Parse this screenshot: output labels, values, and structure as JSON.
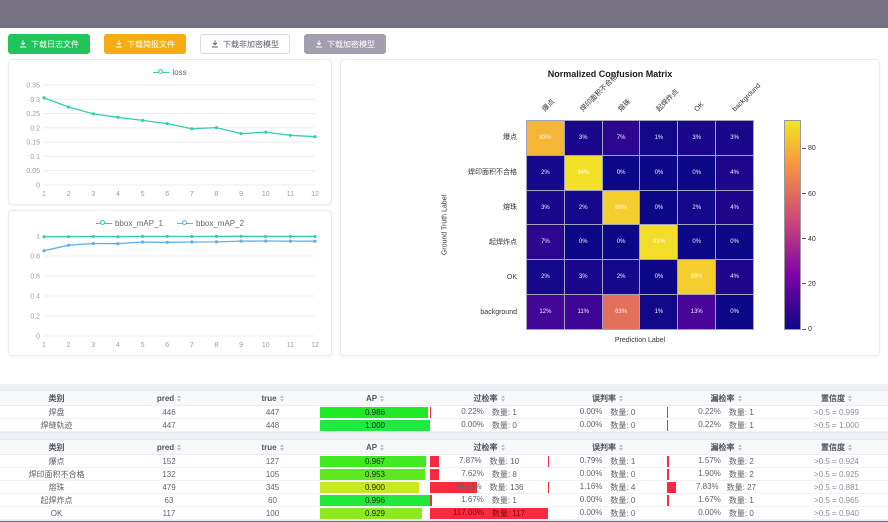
{
  "frame": {
    "bar_color": "#767180"
  },
  "toolbar": {
    "buttons": [
      {
        "label": "下载日志文件",
        "icon": "download-icon",
        "bg": "#21c45a",
        "fg": "#ffffff",
        "border": "#21c45a"
      },
      {
        "label": "下载简报文件",
        "icon": "download-icon",
        "bg": "#f8ac14",
        "fg": "#ffffff",
        "border": "#f8ac14"
      },
      {
        "label": "下载非加密模型",
        "icon": "download-icon",
        "bg": "#ffffff",
        "fg": "#5a5e66",
        "border": "#d9dce3"
      },
      {
        "label": "下载加密模型",
        "icon": "download-icon",
        "bg": "#a39fae",
        "fg": "#ffffff",
        "border": "#a39fae"
      }
    ]
  },
  "chart_data": [
    {
      "type": "line",
      "title": "",
      "x": [
        1,
        2,
        3,
        4,
        5,
        6,
        7,
        8,
        9,
        10,
        11,
        12
      ],
      "series": [
        {
          "name": "loss",
          "color": "#35cdb4",
          "values": [
            0.305,
            0.273,
            0.249,
            0.237,
            0.226,
            0.215,
            0.197,
            0.201,
            0.18,
            0.185,
            0.174,
            0.169
          ]
        }
      ],
      "ylim": [
        0,
        0.35
      ],
      "yticks": [
        0,
        0.05,
        0.1,
        0.15,
        0.2,
        0.25,
        0.3,
        0.35
      ],
      "grid": true,
      "legend_position": "top"
    },
    {
      "type": "line",
      "title": "",
      "x": [
        1,
        2,
        3,
        4,
        5,
        6,
        7,
        8,
        9,
        10,
        11,
        12
      ],
      "series": [
        {
          "name": "bbox_mAP_1",
          "color": "#35cdb4",
          "values": [
            0.993,
            0.993,
            0.995,
            0.993,
            0.996,
            0.996,
            0.995,
            0.996,
            0.997,
            0.996,
            0.996,
            0.996
          ]
        },
        {
          "name": "bbox_mAP_2",
          "color": "#5ab1ef",
          "values": [
            0.852,
            0.908,
            0.925,
            0.923,
            0.94,
            0.937,
            0.94,
            0.941,
            0.949,
            0.95,
            0.949,
            0.948
          ]
        }
      ],
      "ylim": [
        0,
        1
      ],
      "yticks": [
        0,
        0.2,
        0.4,
        0.6,
        0.8,
        1
      ],
      "grid": true,
      "legend_position": "top"
    },
    {
      "type": "heatmap",
      "title": "Normalized Confusion Matrix",
      "xlabel": "Prediction Label",
      "ylabel": "Ground Truth Label",
      "categories": [
        "爆点",
        "焊印面积不合格",
        "熔珠",
        "起焊炸点",
        "OK",
        "background"
      ],
      "values_pct": [
        [
          83,
          3,
          7,
          1,
          3,
          3
        ],
        [
          2,
          94,
          0,
          0,
          0,
          4
        ],
        [
          3,
          2,
          89,
          0,
          2,
          4
        ],
        [
          7,
          0,
          0,
          93,
          0,
          0
        ],
        [
          2,
          3,
          2,
          0,
          89,
          4
        ],
        [
          12,
          11,
          63,
          1,
          13,
          0
        ]
      ],
      "colormap": "plasma",
      "colorbar_ticks": [
        0,
        20,
        40,
        60,
        80
      ],
      "colorbar_max": 93
    }
  ],
  "tables": {
    "qty_label": "数量:",
    "columns": [
      {
        "key": "cls",
        "label": "类别",
        "width": 113,
        "sortable": false
      },
      {
        "key": "pred",
        "label": "pred",
        "width": 112,
        "sortable": true
      },
      {
        "key": "true",
        "label": "true",
        "width": 95,
        "sortable": true
      },
      {
        "key": "ap",
        "label": "AP",
        "width": 110,
        "sortable": true
      },
      {
        "key": "over",
        "label": "过检率",
        "width": 118,
        "sortable": true
      },
      {
        "key": "mis",
        "label": "误判率",
        "width": 119,
        "sortable": true
      },
      {
        "key": "miss",
        "label": "漏检率",
        "width": 118,
        "sortable": true
      },
      {
        "key": "conf",
        "label": "置信度",
        "width": 103,
        "sortable": true
      }
    ],
    "table1": {
      "rows": [
        {
          "cls": "焊盘",
          "pred": 446,
          "true": 447,
          "ap": "0.986",
          "over_pct": 0.22,
          "over_n": 1,
          "mis_pct": 0.0,
          "mis_n": 0,
          "miss_pct": 0.22,
          "miss_n": 1,
          "conf": ">0.5 = 0.999"
        },
        {
          "cls": "焊缝轨迹",
          "pred": 447,
          "true": 448,
          "ap": "1.000",
          "over_pct": 0.0,
          "over_n": 0,
          "mis_pct": 0.0,
          "mis_n": 0,
          "miss_pct": 0.22,
          "miss_n": 1,
          "conf": ">0.5 = 1.000"
        }
      ]
    },
    "table2": {
      "rows": [
        {
          "cls": "爆点",
          "pred": 152,
          "true": 127,
          "ap": "0.967",
          "over_pct": 7.87,
          "over_n": 10,
          "mis_pct": 0.79,
          "mis_n": 1,
          "miss_pct": 1.57,
          "miss_n": 2,
          "conf": ">0.5 = 0.924"
        },
        {
          "cls": "焊印面积不合格",
          "pred": 132,
          "true": 105,
          "ap": "0.953",
          "over_pct": 7.62,
          "over_n": 8,
          "mis_pct": 0.0,
          "mis_n": 0,
          "miss_pct": 1.9,
          "miss_n": 2,
          "conf": ">0.5 = 0.925"
        },
        {
          "cls": "熔珠",
          "pred": 479,
          "true": 345,
          "ap": "0.900",
          "over_pct": 39.42,
          "over_n": 136,
          "mis_pct": 1.16,
          "mis_n": 4,
          "miss_pct": 7.83,
          "miss_n": 27,
          "conf": ">0.5 = 0.881"
        },
        {
          "cls": "起焊炸点",
          "pred": 63,
          "true": 60,
          "ap": "0.996",
          "over_pct": 1.67,
          "over_n": 1,
          "mis_pct": 0.0,
          "mis_n": 0,
          "miss_pct": 1.67,
          "miss_n": 1,
          "conf": ">0.5 = 0.965"
        },
        {
          "cls": "OK",
          "pred": 117,
          "true": 100,
          "ap": "0.929",
          "over_pct": 117.0,
          "over_n": 117,
          "mis_pct": 0.0,
          "mis_n": 0,
          "miss_pct": 0.0,
          "miss_n": 0,
          "conf": ">0.5 = 0.940"
        }
      ]
    }
  }
}
